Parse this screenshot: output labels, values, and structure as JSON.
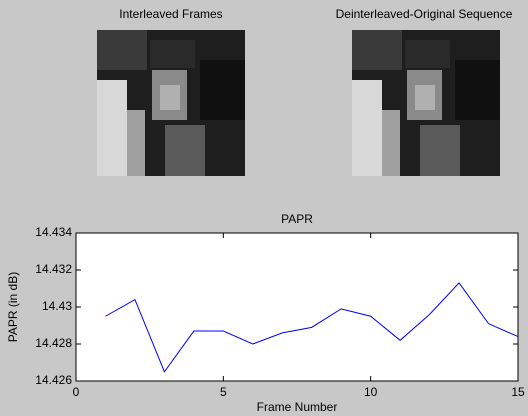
{
  "panels": [
    {
      "title": "Interleaved Frames"
    },
    {
      "title": "Deinterleaved-Original Sequence"
    }
  ],
  "chart_data": {
    "type": "line",
    "title": "PAPR",
    "xlabel": "Frame Number",
    "ylabel": "PAPR (in dB)",
    "x": [
      1,
      2,
      3,
      4,
      5,
      6,
      7,
      8,
      9,
      10,
      11,
      12,
      13,
      14,
      15
    ],
    "series": [
      {
        "color": "#0000ff",
        "values": [
          14.4295,
          14.4304,
          14.4265,
          14.4287,
          14.4287,
          14.428,
          14.4286,
          14.4289,
          14.4299,
          14.4295,
          14.4282,
          14.4296,
          14.4313,
          14.4291,
          14.4284
        ]
      }
    ],
    "xlim": [
      0,
      15
    ],
    "ylim": [
      14.426,
      14.434
    ],
    "xticks": [
      0,
      5,
      10,
      15
    ],
    "yticks": [
      14.426,
      14.428,
      14.43,
      14.432,
      14.434
    ],
    "grid": false
  }
}
